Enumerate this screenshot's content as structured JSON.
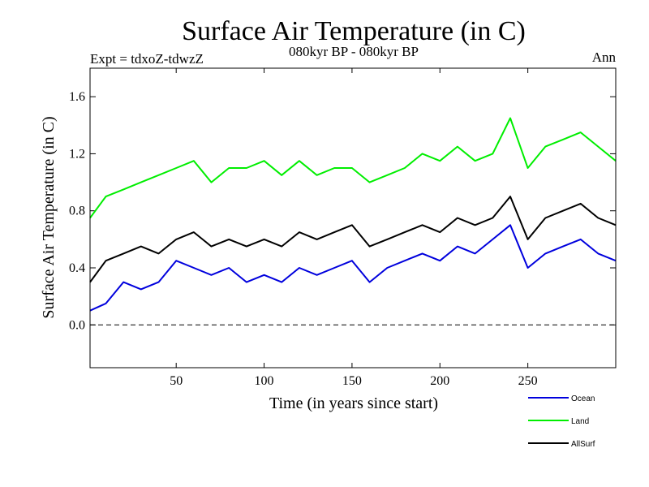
{
  "title": "Surface Air Temperature (in C)",
  "subtitle_left": "Expt = tdxoZ-tdwzZ",
  "subtitle_center": "080kyr BP - 080kyr BP",
  "subtitle_right": "Ann",
  "chart_data": {
    "type": "line",
    "xlabel": "Time (in years since start)",
    "ylabel": "Surface Air Temperature (in C)",
    "xlim": [
      1,
      300
    ],
    "ylim": [
      -0.3,
      1.8
    ],
    "xticks": [
      50,
      100,
      150,
      200,
      250
    ],
    "yticks": [
      0.0,
      0.4,
      0.8,
      1.2,
      1.6
    ],
    "ytick_labels": [
      "0.0",
      "0.4",
      "0.8",
      "1.2",
      "1.6"
    ],
    "zero_line": "dashed",
    "legend_position": "bottom-right, below plot",
    "x": [
      1,
      10,
      20,
      30,
      40,
      50,
      60,
      70,
      80,
      90,
      100,
      110,
      120,
      130,
      140,
      150,
      160,
      170,
      180,
      190,
      200,
      210,
      220,
      230,
      240,
      250,
      260,
      270,
      280,
      290,
      300
    ],
    "series": [
      {
        "name": "Ocean",
        "color": "#0000dd",
        "values": [
          0.1,
          0.15,
          0.3,
          0.25,
          0.3,
          0.45,
          0.4,
          0.35,
          0.4,
          0.3,
          0.35,
          0.3,
          0.4,
          0.35,
          0.4,
          0.45,
          0.3,
          0.4,
          0.45,
          0.5,
          0.45,
          0.55,
          0.5,
          0.6,
          0.7,
          0.4,
          0.5,
          0.55,
          0.6,
          0.5,
          0.45
        ]
      },
      {
        "name": "Land",
        "color": "#00ee00",
        "values": [
          0.75,
          0.9,
          0.95,
          1.0,
          1.05,
          1.1,
          1.15,
          1.0,
          1.1,
          1.1,
          1.15,
          1.05,
          1.15,
          1.05,
          1.1,
          1.1,
          1.0,
          1.05,
          1.1,
          1.2,
          1.15,
          1.25,
          1.15,
          1.2,
          1.45,
          1.1,
          1.25,
          1.3,
          1.35,
          1.25,
          1.15
        ]
      },
      {
        "name": "AllSurf",
        "color": "#000000",
        "values": [
          0.3,
          0.45,
          0.5,
          0.55,
          0.5,
          0.6,
          0.65,
          0.55,
          0.6,
          0.55,
          0.6,
          0.55,
          0.65,
          0.6,
          0.65,
          0.7,
          0.55,
          0.6,
          0.65,
          0.7,
          0.65,
          0.75,
          0.7,
          0.75,
          0.9,
          0.6,
          0.75,
          0.8,
          0.85,
          0.75,
          0.7
        ]
      }
    ]
  }
}
